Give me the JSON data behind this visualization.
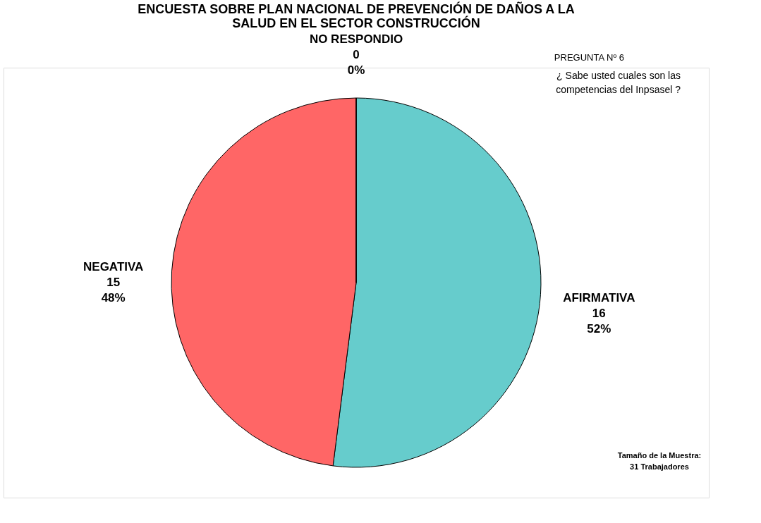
{
  "chart_data": {
    "type": "pie",
    "title": [
      "ENCUESTA SOBRE PLAN NACIONAL DE PREVENCIÓN DE DAÑOS A LA",
      "SALUD EN EL SECTOR CONSTRUCCIÓN"
    ],
    "categories": [
      "AFIRMATIVA",
      "NEGATIVA",
      "NO RESPONDIO"
    ],
    "values": [
      52,
      48,
      0
    ],
    "value_labels": [
      "16\n52%",
      "15\n48%",
      "0\n0%"
    ],
    "colors": [
      "#66cccc",
      "#ff6666",
      "#9999ff"
    ],
    "annotations": [
      "PREGUNTA Nº 6",
      "¿ Sabe usted cuales son las competencias del Inpsasel ?",
      "Tamaño de la Muestra:\n31 Trabajadores"
    ],
    "legend": false
  }
}
